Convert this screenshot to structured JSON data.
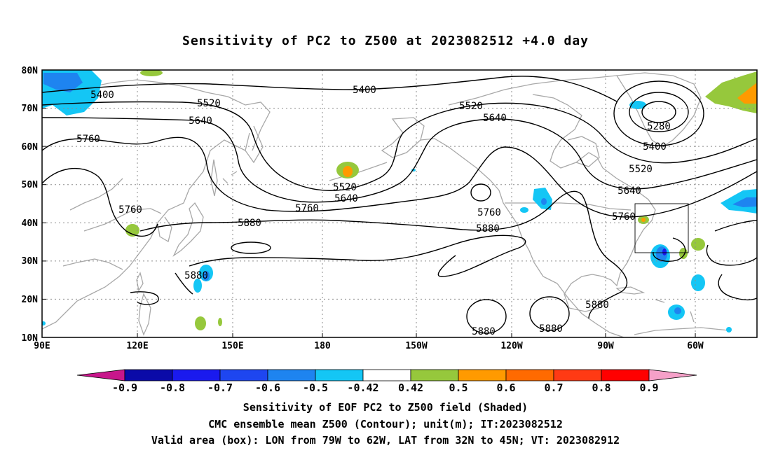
{
  "title": "Sensitivity of PC2 to Z500 at 2023082512 +4.0 day",
  "latitude_labels": [
    "80N",
    "70N",
    "60N",
    "50N",
    "40N",
    "30N",
    "20N",
    "10N"
  ],
  "longitude_labels": [
    "90E",
    "120E",
    "150E",
    "180",
    "150W",
    "120W",
    "90W",
    "60W"
  ],
  "contour_labels": [
    "5400",
    "5520",
    "5640",
    "5760",
    "5400",
    "5520",
    "5640",
    "5280",
    "5400",
    "5520",
    "5640",
    "5760",
    "5880",
    "5520",
    "5640",
    "5760",
    "5760",
    "5880",
    "5880",
    "5880",
    "5880",
    "5880"
  ],
  "colorbar": {
    "labels": [
      "-0.9",
      "-0.8",
      "-0.7",
      "-0.6",
      "-0.5",
      "-0.42",
      "0.42",
      "0.5",
      "0.6",
      "0.7",
      "0.8",
      "0.9"
    ],
    "colors": [
      "#c8168b",
      "#0a0aa8",
      "#1a1aee",
      "#1e46f0",
      "#1e84f0",
      "#14c6f5",
      "#ffffff",
      "#96c83c",
      "#ff9a00",
      "#ff6a00",
      "#ff3a14",
      "#ff0000",
      "#f5a0c8"
    ]
  },
  "colors": {
    "contour": "#000000",
    "coast": "#a8a8a8",
    "grid": "#8c8c8c",
    "box": "#000000"
  },
  "captions": [
    "Sensitivity of EOF PC2 to Z500 field (Shaded)",
    "CMC ensemble mean Z500 (Contour); unit(m); IT:2023082512",
    "Valid area (box): LON from 79W to 62W, LAT from 32N to 45N; VT: 2023082912"
  ]
}
